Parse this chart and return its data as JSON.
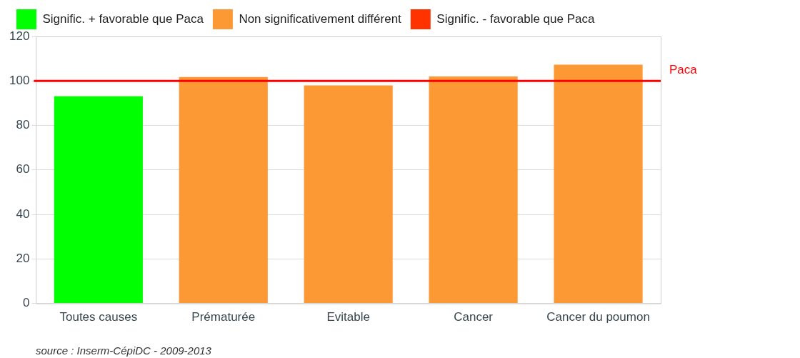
{
  "chart_data": {
    "type": "bar",
    "stacked": true,
    "categories": [
      "Toutes causes",
      "Prématurée",
      "Evitable",
      "Cancer",
      "Cancer du poumon"
    ],
    "series": [
      {
        "name": "Signific. + favorable que Paca",
        "color": "#00ff00",
        "values": [
          93.1,
          null,
          null,
          null,
          null
        ]
      },
      {
        "name": "Non significativement différent",
        "color": "#fd9935",
        "values": [
          null,
          101.8,
          98.0,
          102.0,
          107.3
        ]
      },
      {
        "name": "Signific. - favorable que Paca",
        "color": "#ff3300",
        "values": [
          null,
          null,
          null,
          null,
          null
        ]
      }
    ],
    "ylim": [
      0,
      120
    ],
    "yticks": [
      0,
      20,
      40,
      60,
      80,
      100,
      120
    ],
    "grid": "y",
    "legend": "top",
    "ref_lines": [
      {
        "axis": "y",
        "value": 100,
        "label": "Paca",
        "color": "#ff0000"
      }
    ],
    "annotations": [
      "source : Inserm-CépiDC - 2009-2013"
    ]
  }
}
